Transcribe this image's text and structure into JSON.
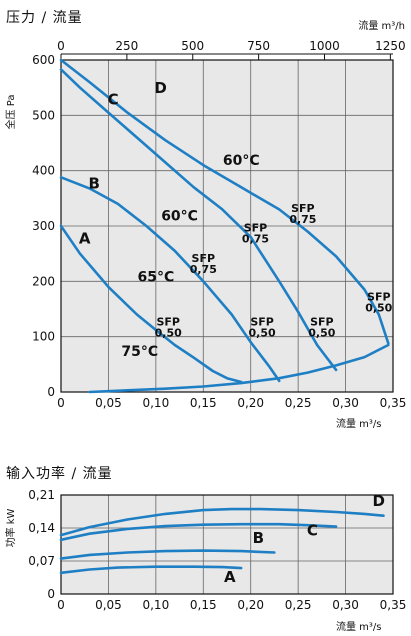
{
  "colors": {
    "curve": "#1f7fc4",
    "grid": "#666666",
    "plot_bg": "#e8e8e8",
    "axis": "#111111"
  },
  "chart_data": [
    {
      "type": "line",
      "title": "压力 / 流量",
      "ylabel": "全压 Pa",
      "xlabel": "流量 m³/s",
      "x2label": "流量 m³/h",
      "xlim": [
        0,
        0.35
      ],
      "ylim": [
        0,
        600
      ],
      "x2lim": [
        0,
        1260
      ],
      "x_ticks": [
        "0",
        "0,05",
        "0,10",
        "0,15",
        "0,20",
        "0,25",
        "0,30",
        "0,35"
      ],
      "x_tick_values": [
        0,
        0.05,
        0.1,
        0.15,
        0.2,
        0.25,
        0.3,
        0.35
      ],
      "y_ticks": [
        "0",
        "100",
        "200",
        "300",
        "400",
        "500",
        "600"
      ],
      "y_tick_values": [
        0,
        100,
        200,
        300,
        400,
        500,
        600
      ],
      "x2_ticks": [
        "0",
        "250",
        "500",
        "750",
        "1000",
        "1250"
      ],
      "x2_tick_values": [
        0,
        250,
        500,
        750,
        1000,
        1250
      ],
      "grid": true,
      "series": [
        {
          "name": "A",
          "x": [
            0,
            0.02,
            0.05,
            0.08,
            0.1,
            0.12,
            0.14,
            0.16,
            0.175,
            0.19
          ],
          "y": [
            300,
            250,
            190,
            140,
            112,
            85,
            62,
            38,
            25,
            18
          ]
        },
        {
          "name": "B",
          "x": [
            0,
            0.03,
            0.06,
            0.09,
            0.12,
            0.15,
            0.18,
            0.2,
            0.22,
            0.23
          ],
          "y": [
            388,
            368,
            340,
            300,
            255,
            200,
            140,
            90,
            45,
            20
          ]
        },
        {
          "name": "C",
          "x": [
            0,
            0.02,
            0.05,
            0.08,
            0.11,
            0.14,
            0.17,
            0.2,
            0.23,
            0.25,
            0.27,
            0.29
          ],
          "y": [
            583,
            550,
            505,
            460,
            415,
            370,
            330,
            280,
            200,
            145,
            85,
            40
          ]
        },
        {
          "name": "D",
          "x": [
            0,
            0.03,
            0.07,
            0.11,
            0.15,
            0.19,
            0.23,
            0.26,
            0.29,
            0.32,
            0.335,
            0.345
          ],
          "y": [
            600,
            560,
            505,
            455,
            410,
            370,
            330,
            290,
            245,
            185,
            140,
            88
          ]
        },
        {
          "name": "",
          "x": [
            0.03,
            0.07,
            0.11,
            0.15,
            0.19,
            0.23,
            0.26,
            0.29,
            0.32,
            0.345
          ],
          "y": [
            0,
            3,
            6,
            10,
            16,
            25,
            35,
            48,
            63,
            85
          ]
        }
      ],
      "curve_labels": [
        {
          "text": "A",
          "x": 0.025,
          "y": 268
        },
        {
          "text": "B",
          "x": 0.035,
          "y": 368
        },
        {
          "text": "C",
          "x": 0.055,
          "y": 520
        },
        {
          "text": "D",
          "x": 0.105,
          "y": 540
        }
      ],
      "temperature_labels": [
        {
          "text": "60°C",
          "x": 0.19,
          "y": 410
        },
        {
          "text": "60°C",
          "x": 0.125,
          "y": 310
        },
        {
          "text": "65°C",
          "x": 0.1,
          "y": 200
        },
        {
          "text": "75°C",
          "x": 0.083,
          "y": 65
        }
      ],
      "sfp_labels": [
        {
          "line1": "SFP",
          "line2": "0,75",
          "x": 0.255,
          "y": 325
        },
        {
          "line1": "SFP",
          "line2": "0,75",
          "x": 0.205,
          "y": 290
        },
        {
          "line1": "SFP",
          "line2": "0,75",
          "x": 0.15,
          "y": 235
        },
        {
          "line1": "SFP",
          "line2": "0,50",
          "x": 0.335,
          "y": 165
        },
        {
          "line1": "SFP",
          "line2": "0,50",
          "x": 0.275,
          "y": 120
        },
        {
          "line1": "SFP",
          "line2": "0,50",
          "x": 0.212,
          "y": 120
        },
        {
          "line1": "SFP",
          "line2": "0,50",
          "x": 0.113,
          "y": 120
        }
      ]
    },
    {
      "type": "line",
      "title": "输入功率 / 流量",
      "ylabel": "功率 kW",
      "xlabel": "流量 m³/s",
      "xlim": [
        0,
        0.35
      ],
      "ylim": [
        0,
        0.21
      ],
      "x_ticks": [
        "0",
        "0,05",
        "0,10",
        "0,15",
        "0,20",
        "0,25",
        "0,30",
        "0,35"
      ],
      "x_tick_values": [
        0,
        0.05,
        0.1,
        0.15,
        0.2,
        0.25,
        0.3,
        0.35
      ],
      "y_ticks": [
        "0",
        "0,07",
        "0,14",
        "0,21"
      ],
      "y_tick_values": [
        0,
        0.07,
        0.14,
        0.21
      ],
      "grid": true,
      "series": [
        {
          "name": "A",
          "x": [
            0,
            0.03,
            0.06,
            0.1,
            0.14,
            0.17,
            0.19
          ],
          "y": [
            0.045,
            0.052,
            0.056,
            0.058,
            0.058,
            0.057,
            0.055
          ]
        },
        {
          "name": "B",
          "x": [
            0,
            0.03,
            0.07,
            0.11,
            0.15,
            0.19,
            0.225
          ],
          "y": [
            0.075,
            0.083,
            0.088,
            0.091,
            0.092,
            0.091,
            0.088
          ]
        },
        {
          "name": "C",
          "x": [
            0,
            0.03,
            0.07,
            0.11,
            0.15,
            0.19,
            0.23,
            0.26,
            0.29
          ],
          "y": [
            0.115,
            0.128,
            0.138,
            0.144,
            0.147,
            0.148,
            0.148,
            0.146,
            0.143
          ]
        },
        {
          "name": "D",
          "x": [
            0,
            0.03,
            0.07,
            0.11,
            0.15,
            0.18,
            0.21,
            0.25,
            0.29,
            0.32,
            0.34
          ],
          "y": [
            0.125,
            0.142,
            0.158,
            0.17,
            0.178,
            0.18,
            0.18,
            0.178,
            0.174,
            0.17,
            0.166
          ]
        }
      ],
      "curve_labels": [
        {
          "text": "A",
          "x": 0.178,
          "y": 0.025
        },
        {
          "text": "B",
          "x": 0.208,
          "y": 0.108
        },
        {
          "text": "C",
          "x": 0.265,
          "y": 0.124
        },
        {
          "text": "D",
          "x": 0.335,
          "y": 0.187
        }
      ]
    }
  ]
}
